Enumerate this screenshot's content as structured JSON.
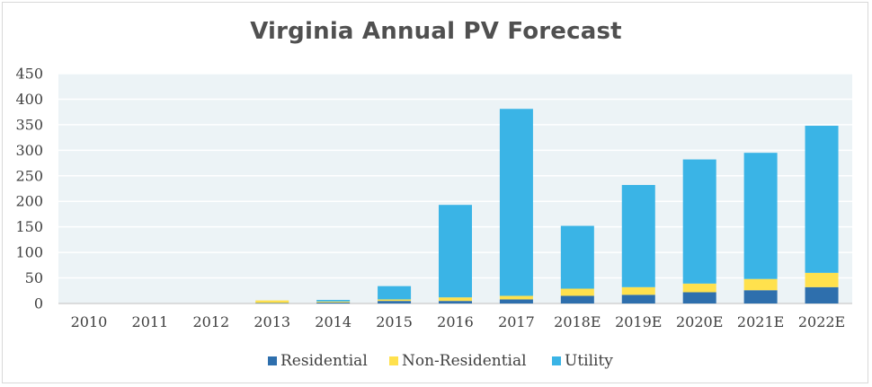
{
  "chart_data": {
    "type": "bar",
    "stacked": true,
    "title": "Virginia Annual PV Forecast",
    "xlabel": "",
    "ylabel": "",
    "ylim": [
      0,
      450
    ],
    "yticks": [
      0,
      50,
      100,
      150,
      200,
      250,
      300,
      350,
      400,
      450
    ],
    "grid": true,
    "legend_position": "bottom",
    "categories": [
      "2010",
      "2011",
      "2012",
      "2013",
      "2014",
      "2015",
      "2016",
      "2017",
      "2018E",
      "2019E",
      "2020E",
      "2021E",
      "2022E"
    ],
    "series": [
      {
        "name": "Residential",
        "color": "#2e6fad",
        "values": [
          0,
          0,
          0,
          1,
          2,
          5,
          5,
          8,
          15,
          17,
          22,
          26,
          32
        ]
      },
      {
        "name": "Non-Residential",
        "color": "#ffe14d",
        "values": [
          0,
          0,
          0,
          5,
          2,
          3,
          7,
          7,
          14,
          15,
          17,
          22,
          28
        ]
      },
      {
        "name": "Utility",
        "color": "#3ab4e6",
        "values": [
          0,
          0,
          0,
          0,
          3,
          26,
          181,
          366,
          123,
          200,
          243,
          247,
          288
        ]
      }
    ],
    "plot_background": "#ecf3f6"
  }
}
